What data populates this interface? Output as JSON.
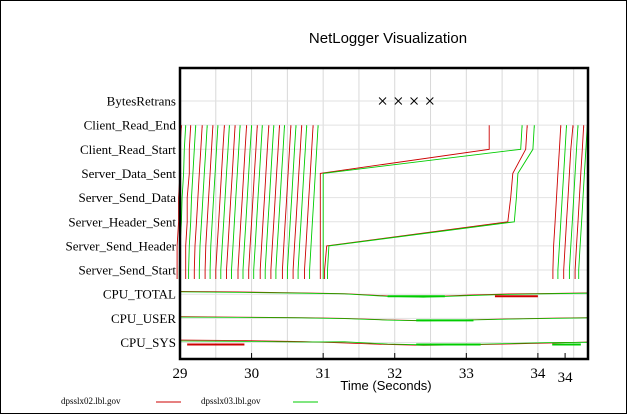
{
  "chart_data": {
    "type": "line",
    "title": "NetLogger Visualization",
    "xlabel": "Time (Seconds)",
    "xlim": [
      29,
      34.7
    ],
    "x_ticks": [
      {
        "label": "29",
        "value": 29.0
      },
      {
        "label": "30",
        "value": 30.0
      },
      {
        "label": "31",
        "value": 31.0
      },
      {
        "label": "32",
        "value": 32.0
      },
      {
        "label": "33",
        "value": 33.0
      },
      {
        "label": "34",
        "value": 34.0
      },
      {
        "label": "34",
        "value": 34.38
      }
    ],
    "grid": true,
    "event_rows": [
      "BytesRetrans",
      "Client_Read_End",
      "Client_Read_Start",
      "Server_Data_Sent",
      "Server_Send_Data",
      "Server_Header_Sent",
      "Server_Send_Header",
      "Server_Send_Start",
      "CPU_TOTAL",
      "CPU_USER",
      "CPU_SYS"
    ],
    "markers": {
      "row": "BytesRetrans",
      "symbol": "X",
      "x": [
        31.83,
        32.05,
        32.27,
        32.49
      ]
    },
    "lifelines": {
      "rows": [
        "Client_Read_End",
        "Client_Read_Start",
        "Server_Data_Sent",
        "Server_Send_Data",
        "Server_Header_Sent",
        "Server_Send_Header",
        "Server_Send_Start"
      ],
      "series": [
        {
          "name": "dpsslx02.lbl.gov",
          "color": "#cc0000",
          "traces": [
            [
              29.02,
              29.0,
              29.0,
              28.98,
              28.98,
              28.96,
              28.96
            ],
            [
              29.15,
              29.13,
              29.13,
              29.1,
              29.1,
              29.08,
              29.08
            ],
            [
              29.31,
              29.29,
              29.27,
              29.25,
              29.23,
              29.21,
              29.2
            ],
            [
              29.46,
              29.44,
              29.42,
              29.4,
              29.38,
              29.36,
              29.35
            ],
            [
              29.62,
              29.6,
              29.58,
              29.56,
              29.54,
              29.52,
              29.5
            ],
            [
              29.77,
              29.75,
              29.73,
              29.71,
              29.69,
              29.67,
              29.65
            ],
            [
              29.93,
              29.91,
              29.89,
              29.87,
              29.85,
              29.83,
              29.81
            ],
            [
              30.08,
              30.06,
              30.04,
              30.02,
              30.0,
              29.98,
              29.96
            ],
            [
              30.24,
              30.22,
              30.2,
              30.18,
              30.16,
              30.14,
              30.12
            ],
            [
              30.39,
              30.37,
              30.35,
              30.33,
              30.31,
              30.29,
              30.27
            ],
            [
              30.55,
              30.53,
              30.51,
              30.49,
              30.47,
              30.45,
              30.43
            ],
            [
              30.7,
              30.68,
              30.66,
              30.64,
              30.62,
              30.6,
              30.58
            ],
            [
              30.86,
              30.84,
              30.82,
              30.8,
              30.78,
              30.76,
              30.74
            ],
            [
              33.32,
              33.32,
              30.96,
              30.96,
              30.96,
              30.96,
              30.96
            ],
            [
              33.85,
              33.83,
              33.65,
              33.62,
              33.58,
              31.05,
              31.02
            ],
            [
              34.32,
              34.3,
              34.28,
              34.26,
              34.24,
              34.22,
              34.21
            ],
            [
              34.49,
              34.46,
              34.44,
              34.42,
              34.4,
              34.38,
              34.36
            ],
            [
              34.64,
              34.62,
              34.6,
              34.58,
              34.56,
              34.54,
              34.52
            ]
          ]
        },
        {
          "name": "dpsslx03.lbl.gov",
          "color": "#00cc00",
          "traces": [
            [
              29.08,
              29.06,
              29.05,
              29.03,
              29.02,
              29.0,
              28.99
            ],
            [
              29.22,
              29.2,
              29.18,
              29.16,
              29.15,
              29.13,
              29.12
            ],
            [
              29.38,
              29.36,
              29.34,
              29.32,
              29.3,
              29.28,
              29.27
            ],
            [
              29.53,
              29.51,
              29.49,
              29.47,
              29.45,
              29.43,
              29.42
            ],
            [
              29.69,
              29.67,
              29.65,
              29.63,
              29.61,
              29.59,
              29.57
            ],
            [
              29.84,
              29.82,
              29.8,
              29.78,
              29.76,
              29.74,
              29.72
            ],
            [
              30.0,
              29.98,
              29.96,
              29.94,
              29.92,
              29.9,
              29.88
            ],
            [
              30.15,
              30.13,
              30.11,
              30.09,
              30.07,
              30.05,
              30.03
            ],
            [
              30.31,
              30.29,
              30.27,
              30.25,
              30.23,
              30.21,
              30.19
            ],
            [
              30.46,
              30.44,
              30.42,
              30.4,
              30.38,
              30.36,
              30.34
            ],
            [
              30.62,
              30.6,
              30.58,
              30.56,
              30.54,
              30.52,
              30.5
            ],
            [
              30.77,
              30.75,
              30.73,
              30.71,
              30.69,
              30.67,
              30.65
            ],
            [
              30.93,
              30.91,
              30.89,
              30.87,
              30.85,
              30.83,
              30.81
            ],
            [
              33.78,
              33.76,
              31.0,
              31.0,
              31.0,
              31.0,
              31.0
            ],
            [
              33.95,
              33.93,
              33.72,
              33.7,
              33.67,
              31.08,
              31.06
            ],
            [
              34.4,
              34.38,
              34.36,
              34.34,
              34.32,
              34.3,
              34.28
            ],
            [
              34.56,
              34.54,
              34.52,
              34.5,
              34.48,
              34.46,
              34.44
            ],
            [
              34.69,
              34.67,
              34.65,
              34.63,
              34.61,
              34.59,
              34.57
            ]
          ]
        }
      ]
    },
    "cpu_traces": [
      {
        "row": "CPU_TOTAL",
        "series": "dpsslx02.lbl.gov",
        "color": "#cc0000",
        "x": [
          29.0,
          29.8,
          30.7,
          31.3,
          31.9,
          32.4,
          33.0,
          33.6,
          34.2,
          34.7
        ],
        "offset": [
          0.55,
          0.45,
          0.25,
          0.1,
          -0.35,
          -0.55,
          -0.2,
          0.05,
          0.15,
          0.25
        ]
      },
      {
        "row": "CPU_TOTAL",
        "series": "dpsslx03.lbl.gov",
        "color": "#00cc00",
        "x": [
          29.0,
          29.8,
          30.7,
          31.3,
          31.9,
          32.4,
          33.0,
          33.6,
          34.2,
          34.7
        ],
        "offset": [
          0.45,
          0.35,
          0.2,
          0.05,
          -0.45,
          -0.6,
          -0.3,
          -0.05,
          0.1,
          0.2
        ]
      },
      {
        "row": "CPU_USER",
        "series": "dpsslx02.lbl.gov",
        "color": "#cc0000",
        "x": [
          29.0,
          29.8,
          30.7,
          31.3,
          31.9,
          32.4,
          33.0,
          33.6,
          34.2,
          34.7
        ],
        "offset": [
          0.35,
          0.25,
          0.15,
          0.0,
          -0.3,
          -0.45,
          -0.3,
          -0.1,
          0.05,
          0.15
        ]
      },
      {
        "row": "CPU_USER",
        "series": "dpsslx03.lbl.gov",
        "color": "#00cc00",
        "x": [
          29.0,
          29.8,
          30.7,
          31.3,
          31.9,
          32.4,
          33.0,
          33.6,
          34.2,
          34.7
        ],
        "offset": [
          0.25,
          0.2,
          0.1,
          -0.05,
          -0.35,
          -0.5,
          -0.35,
          -0.15,
          0.0,
          0.1
        ]
      },
      {
        "row": "CPU_SYS",
        "series": "dpsslx02.lbl.gov",
        "color": "#cc0000",
        "x": [
          29.0,
          29.8,
          30.7,
          31.3,
          31.9,
          32.4,
          33.0,
          33.6,
          34.2,
          34.7
        ],
        "offset": [
          0.5,
          0.4,
          0.2,
          -0.1,
          -0.4,
          -0.55,
          -0.45,
          -0.3,
          -0.1,
          0.1
        ]
      },
      {
        "row": "CPU_SYS",
        "series": "dpsslx03.lbl.gov",
        "color": "#00cc00",
        "x": [
          29.0,
          29.8,
          30.7,
          31.3,
          31.9,
          32.4,
          33.0,
          33.6,
          34.2,
          34.7
        ],
        "offset": [
          0.3,
          0.25,
          0.1,
          0.15,
          -0.3,
          -0.45,
          -0.4,
          -0.2,
          0.0,
          0.05
        ]
      }
    ],
    "cpu_segments": [
      {
        "row": "CPU_TOTAL",
        "color": "#cc0000",
        "x": [
          33.4,
          34.0
        ]
      },
      {
        "row": "CPU_TOTAL",
        "color": "#00cc00",
        "x": [
          31.9,
          32.7
        ]
      },
      {
        "row": "CPU_USER",
        "color": "#00cc00",
        "x": [
          32.3,
          33.1
        ]
      },
      {
        "row": "CPU_SYS",
        "color": "#cc0000",
        "x": [
          29.1,
          29.9
        ]
      },
      {
        "row": "CPU_SYS",
        "color": "#00cc00",
        "x": [
          32.3,
          33.2
        ]
      },
      {
        "row": "CPU_SYS",
        "color": "#00cc00",
        "x": [
          34.2,
          34.6
        ]
      }
    ],
    "legend": [
      {
        "label": "dpsslx02.lbl.gov",
        "color": "#cc0000"
      },
      {
        "label": "dpsslx03.lbl.gov",
        "color": "#00cc00"
      }
    ],
    "legend_position": "bottom-left"
  }
}
